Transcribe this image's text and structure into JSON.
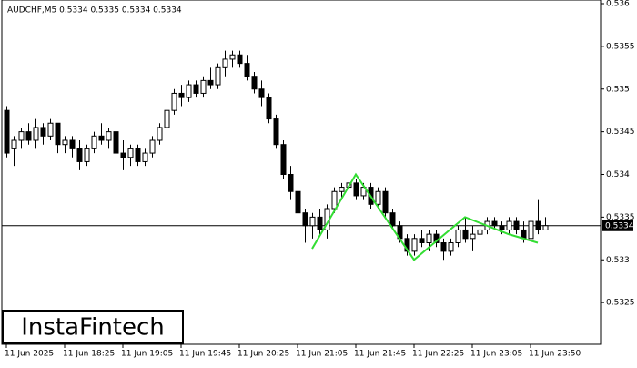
{
  "chart_data": {
    "type": "candlestick",
    "title": "AUDCHF,M5  0.5334 0.5335 0.5334 0.5334",
    "logo": "InstaFintech",
    "categories": [
      "11 Jun 2025",
      null,
      null,
      null,
      null,
      null,
      null,
      null,
      "11 Jun 18:25",
      null,
      null,
      null,
      null,
      null,
      null,
      null,
      "11 Jun 19:05",
      null,
      null,
      null,
      null,
      null,
      null,
      null,
      "11 Jun 19:45",
      null,
      null,
      null,
      null,
      null,
      null,
      null,
      "11 Jun 20:25",
      null,
      null,
      null,
      null,
      null,
      null,
      null,
      "11 Jun 21:05",
      null,
      null,
      null,
      null,
      null,
      null,
      null,
      "11 Jun 21:45",
      null,
      null,
      null,
      null,
      null,
      null,
      null,
      "11 Jun 22:25",
      null,
      null,
      null,
      null,
      null,
      null,
      null,
      "11 Jun 23:05",
      null,
      null,
      null,
      null,
      null,
      null,
      null,
      "11 Jun 23:50",
      null,
      null
    ],
    "open": [
      0.53475,
      0.5343,
      0.5344,
      0.5345,
      0.5344,
      0.53455,
      0.53445,
      0.5346,
      0.53435,
      0.5344,
      0.5343,
      0.53415,
      0.5343,
      0.53445,
      0.5344,
      0.5345,
      0.53425,
      0.5342,
      0.5343,
      0.53415,
      0.53425,
      0.5344,
      0.53455,
      0.53475,
      0.53495,
      0.5349,
      0.53505,
      0.53495,
      0.5351,
      0.53505,
      0.53525,
      0.53535,
      0.5354,
      0.5353,
      0.53515,
      0.535,
      0.5349,
      0.53465,
      0.53435,
      0.534,
      0.5338,
      0.53355,
      0.5334,
      0.5335,
      0.53335,
      0.5336,
      0.5338,
      0.53385,
      0.5339,
      0.53375,
      0.53385,
      0.53365,
      0.5338,
      0.53355,
      0.5334,
      0.53325,
      0.5331,
      0.53325,
      0.5332,
      0.5333,
      0.5332,
      0.5331,
      0.5332,
      0.53335,
      0.53325,
      0.5333,
      0.53335,
      0.53345,
      0.5334,
      0.53335,
      0.53345,
      0.53335,
      0.53325,
      0.53345,
      0.53335
    ],
    "high": [
      0.5348,
      0.53445,
      0.53455,
      0.5346,
      0.53465,
      0.5346,
      0.53465,
      0.5346,
      0.53445,
      0.53445,
      0.5344,
      0.53435,
      0.5345,
      0.5346,
      0.53455,
      0.53455,
      0.5344,
      0.53435,
      0.53435,
      0.5343,
      0.53445,
      0.5346,
      0.5348,
      0.535,
      0.53505,
      0.5351,
      0.5351,
      0.53515,
      0.53525,
      0.5353,
      0.53545,
      0.53545,
      0.53545,
      0.5354,
      0.5352,
      0.5351,
      0.53495,
      0.5347,
      0.5344,
      0.5341,
      0.53385,
      0.5336,
      0.53355,
      0.5336,
      0.53365,
      0.53385,
      0.5339,
      0.534,
      0.53395,
      0.5339,
      0.5339,
      0.53385,
      0.53385,
      0.5336,
      0.53345,
      0.5333,
      0.5333,
      0.53335,
      0.53335,
      0.53335,
      0.53325,
      0.53325,
      0.5334,
      0.5335,
      0.5334,
      0.5334,
      0.5335,
      0.5335,
      0.53345,
      0.5335,
      0.5335,
      0.53345,
      0.5335,
      0.5337,
      0.5335
    ],
    "low": [
      0.5342,
      0.5341,
      0.5343,
      0.53435,
      0.5343,
      0.53435,
      0.5344,
      0.53425,
      0.53425,
      0.5342,
      0.53405,
      0.5341,
      0.53425,
      0.53435,
      0.5343,
      0.5342,
      0.53405,
      0.5341,
      0.5341,
      0.5341,
      0.5342,
      0.53435,
      0.5345,
      0.5347,
      0.5348,
      0.53485,
      0.5349,
      0.5349,
      0.535,
      0.535,
      0.53515,
      0.53525,
      0.53525,
      0.5351,
      0.53495,
      0.5348,
      0.5346,
      0.5343,
      0.53395,
      0.5337,
      0.5335,
      0.5332,
      0.53325,
      0.5333,
      0.53325,
      0.53355,
      0.5337,
      0.53375,
      0.5337,
      0.5337,
      0.5336,
      0.5336,
      0.5335,
      0.53335,
      0.5332,
      0.53305,
      0.53305,
      0.53315,
      0.5331,
      0.53315,
      0.533,
      0.53305,
      0.53315,
      0.5332,
      0.5331,
      0.53325,
      0.5333,
      0.53335,
      0.5333,
      0.5333,
      0.5333,
      0.5332,
      0.5332,
      0.5333,
      0.53335
    ],
    "close": [
      0.53425,
      0.5344,
      0.5345,
      0.5344,
      0.53455,
      0.53445,
      0.5346,
      0.53435,
      0.5344,
      0.5343,
      0.53415,
      0.5343,
      0.53445,
      0.5344,
      0.5345,
      0.53425,
      0.5342,
      0.5343,
      0.53415,
      0.53425,
      0.5344,
      0.53455,
      0.53475,
      0.53495,
      0.5349,
      0.53505,
      0.53495,
      0.5351,
      0.53505,
      0.53525,
      0.53535,
      0.5354,
      0.5353,
      0.53515,
      0.535,
      0.5349,
      0.53465,
      0.53435,
      0.534,
      0.5338,
      0.53355,
      0.5334,
      0.5335,
      0.53335,
      0.5336,
      0.5338,
      0.53385,
      0.5339,
      0.53375,
      0.53385,
      0.53365,
      0.5338,
      0.53355,
      0.5334,
      0.53325,
      0.5331,
      0.53325,
      0.5332,
      0.5333,
      0.5332,
      0.5331,
      0.5332,
      0.53335,
      0.53325,
      0.5333,
      0.53335,
      0.53345,
      0.5334,
      0.53335,
      0.53345,
      0.53335,
      0.53325,
      0.53345,
      0.53335,
      0.5334
    ],
    "pattern_color": "#33dd33",
    "pattern_x": [
      42,
      48,
      56,
      63,
      69,
      73
    ],
    "pattern_values": [
      0.53313,
      0.534,
      0.533,
      0.5335,
      0.5333,
      0.5332
    ],
    "current_price": 0.5334,
    "ylim": [
      0.532,
      0.536
    ],
    "yticks": [
      0.5325,
      0.533,
      0.5335,
      0.534,
      0.5345,
      0.535,
      0.5355,
      0.536
    ]
  }
}
